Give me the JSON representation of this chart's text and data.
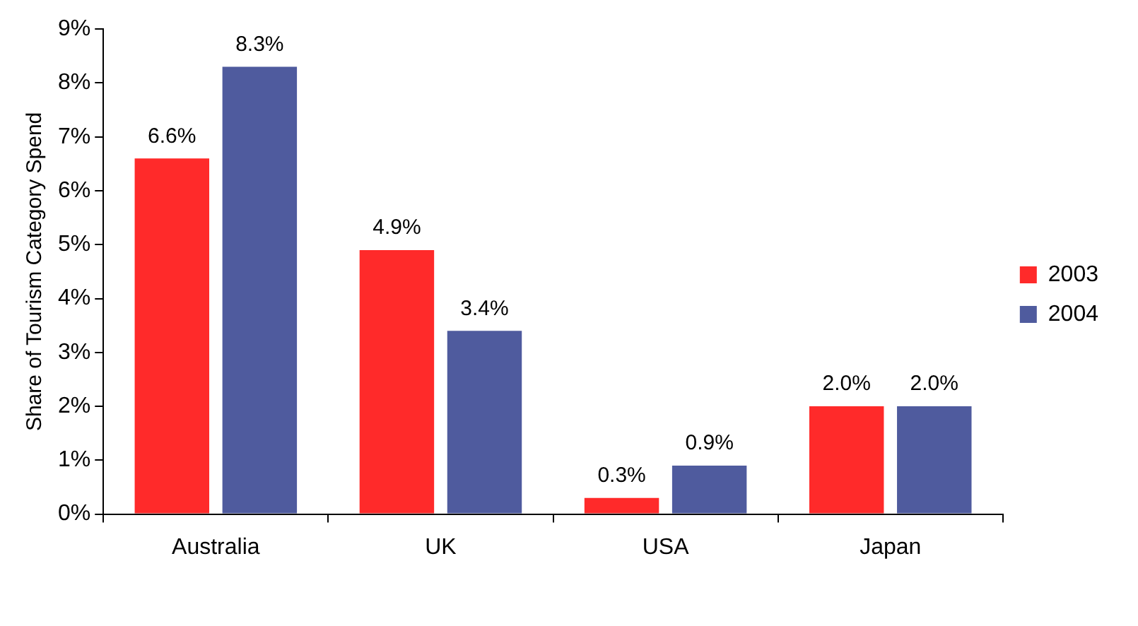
{
  "chart_data": {
    "type": "bar",
    "ylabel": "Share of Tourism Category Spend",
    "categories": [
      "Australia",
      "UK",
      "USA",
      "Japan"
    ],
    "series": [
      {
        "name": "2003",
        "color": "#ff2a2a",
        "values": [
          6.6,
          4.9,
          0.3,
          2.0
        ],
        "value_labels": [
          "6.6%",
          "4.9%",
          "0.3%",
          "2.0%"
        ]
      },
      {
        "name": "2004",
        "color": "#4f5b9e",
        "values": [
          8.3,
          3.4,
          0.9,
          2.0
        ],
        "value_labels": [
          "8.3%",
          "3.4%",
          "0.9%",
          "2.0%"
        ]
      }
    ],
    "ylim": [
      0,
      9
    ],
    "yticks": [
      {
        "value": 0,
        "label": "0%"
      },
      {
        "value": 1,
        "label": "1%"
      },
      {
        "value": 2,
        "label": "2%"
      },
      {
        "value": 3,
        "label": "3%"
      },
      {
        "value": 4,
        "label": "4%"
      },
      {
        "value": 5,
        "label": "5%"
      },
      {
        "value": 6,
        "label": "6%"
      },
      {
        "value": 7,
        "label": "7%"
      },
      {
        "value": 8,
        "label": "8%"
      },
      {
        "value": 9,
        "label": "9%"
      }
    ],
    "grid": false,
    "legend": "right"
  }
}
